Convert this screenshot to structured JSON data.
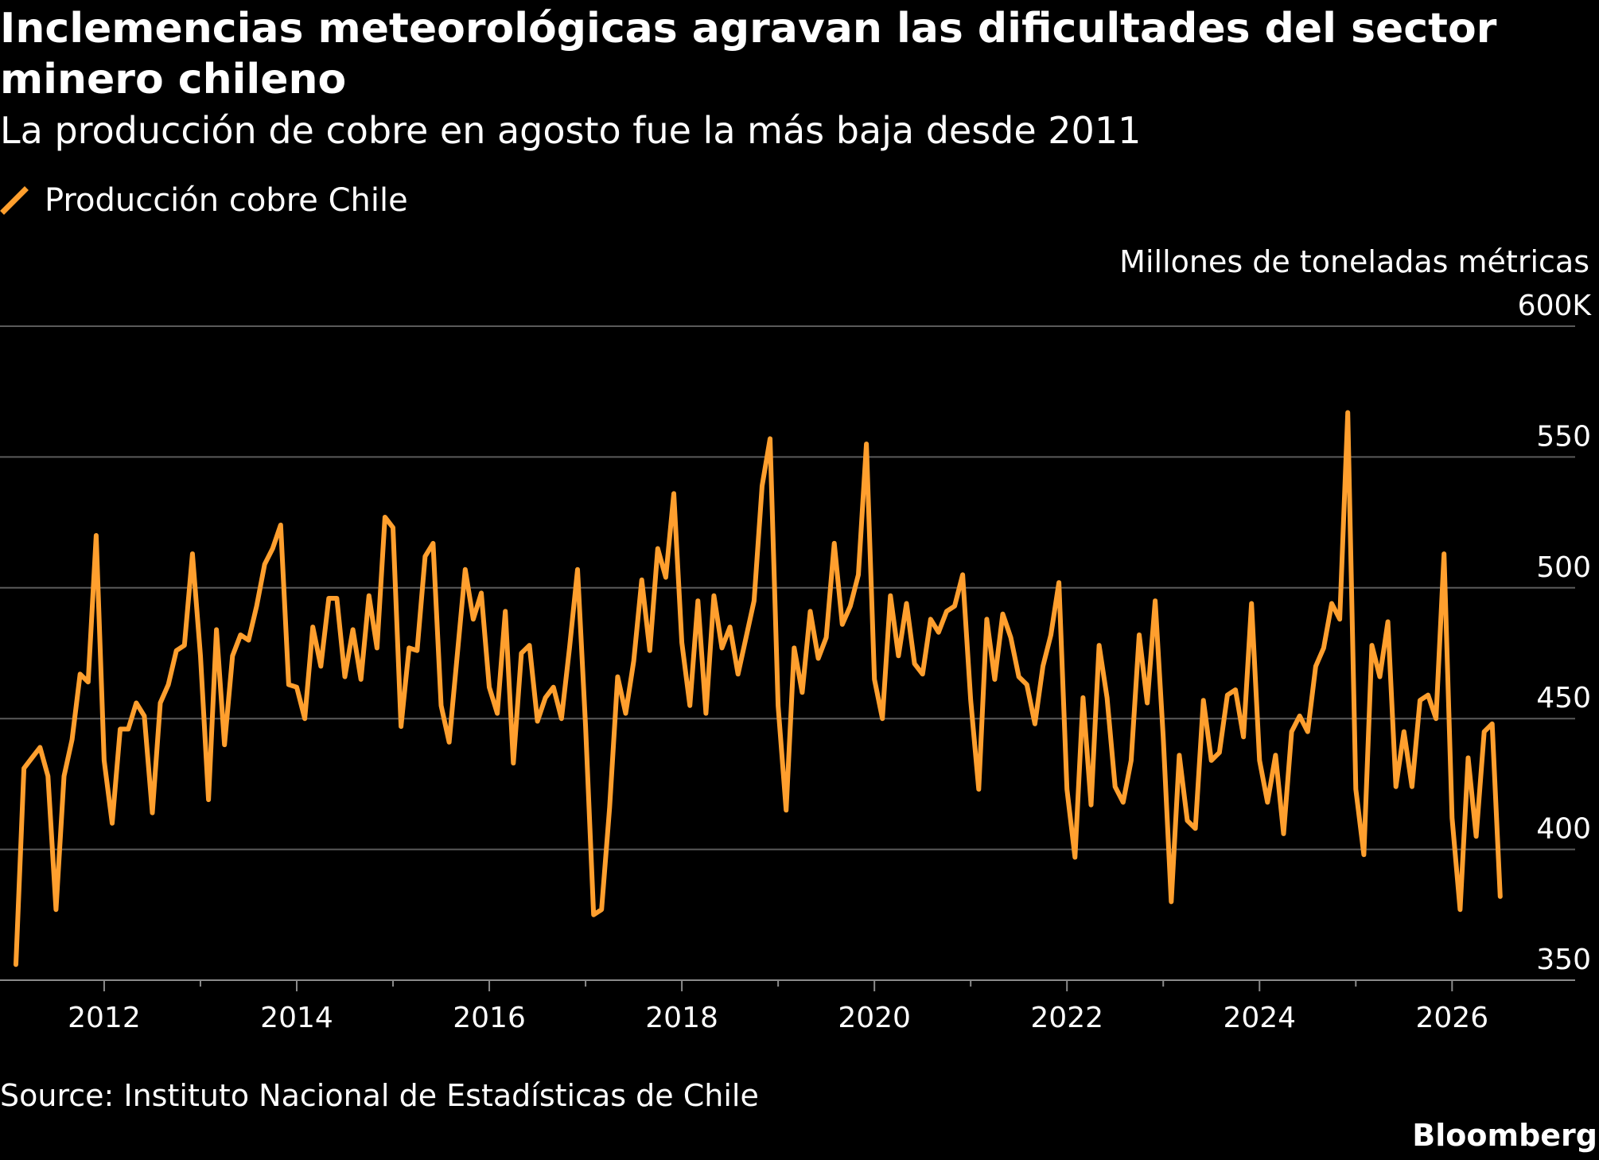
{
  "title": "Inclemencias meteorológicas agravan las dificultades del sector minero chileno",
  "subtitle": "La producción de cobre en agosto fue la más baja desde 2011",
  "legend": {
    "label": "Producción cobre Chile",
    "color": "#ff9f2e"
  },
  "unit_label": "Millones de toneladas métricas",
  "source": "Source: Instituto Nacional de Estadísticas de Chile",
  "brand": "Bloomberg",
  "colors": {
    "background": "#000000",
    "line": "#ff9f2e",
    "grid": "#5a5a5a",
    "text": "#ffffff"
  },
  "chart_data": {
    "type": "line",
    "title": "Inclemencias meteorológicas agravan las dificultades del sector minero chileno",
    "subtitle": "La producción de cobre en agosto fue la más baja desde 2011",
    "xlabel": "",
    "ylabel": "Millones de toneladas métricas",
    "ylim": [
      350,
      600
    ],
    "xlim": [
      "2011-01",
      "2026-12"
    ],
    "grid": true,
    "legend_position": "top-left",
    "y_ticks": [
      {
        "value": 600,
        "label": "600K"
      },
      {
        "value": 550,
        "label": "550"
      },
      {
        "value": 500,
        "label": "500"
      },
      {
        "value": 450,
        "label": "450"
      },
      {
        "value": 400,
        "label": "400"
      },
      {
        "value": 350,
        "label": "350"
      }
    ],
    "x_ticks": [
      {
        "value": "2012-01",
        "label": "2012"
      },
      {
        "value": "2014-01",
        "label": "2014"
      },
      {
        "value": "2016-01",
        "label": "2016"
      },
      {
        "value": "2018-01",
        "label": "2018"
      },
      {
        "value": "2020-01",
        "label": "2020"
      },
      {
        "value": "2022-01",
        "label": "2022"
      },
      {
        "value": "2024-01",
        "label": "2024"
      },
      {
        "value": "2026-01",
        "label": "2026"
      }
    ],
    "x_minor_ticks": [
      "2013-01",
      "2015-01",
      "2017-01",
      "2019-01",
      "2021-01",
      "2023-01",
      "2025-01"
    ],
    "series": [
      {
        "name": "Producción cobre Chile",
        "start": "2011-02",
        "frequency": "monthly",
        "values": [
          356,
          431,
          435,
          439,
          428,
          377,
          428,
          442,
          467,
          464,
          520,
          434,
          410,
          446,
          446,
          456,
          451,
          414,
          456,
          463,
          476,
          478,
          513,
          474,
          419,
          484,
          440,
          474,
          482,
          480,
          493,
          509,
          515,
          524,
          463,
          462,
          450,
          485,
          470,
          496,
          496,
          466,
          484,
          465,
          497,
          477,
          527,
          523,
          447,
          477,
          476,
          512,
          517,
          455,
          441,
          474,
          507,
          488,
          498,
          462,
          452,
          491,
          433,
          475,
          478,
          449,
          458,
          462,
          450,
          477,
          507,
          447,
          375,
          377,
          416,
          466,
          452,
          472,
          503,
          476,
          515,
          504,
          536,
          479,
          455,
          495,
          452,
          497,
          477,
          485,
          467,
          481,
          495,
          539,
          557,
          455,
          415,
          477,
          460,
          491,
          473,
          481,
          517,
          486,
          493,
          505,
          555,
          465,
          450,
          497,
          474,
          494,
          471,
          467,
          488,
          483,
          491,
          493,
          505,
          457,
          423,
          488,
          465,
          490,
          481,
          466,
          463,
          448,
          470,
          482,
          502,
          423,
          397,
          458,
          417,
          478,
          458,
          424,
          418,
          434,
          482,
          456,
          495,
          443,
          380,
          436,
          411,
          408,
          457,
          434,
          437,
          459,
          461,
          443,
          494,
          434,
          418,
          436,
          406,
          445,
          451,
          445,
          470,
          477,
          494,
          488,
          567,
          423,
          398,
          478,
          466,
          487,
          424,
          445,
          424,
          457,
          459,
          450,
          513,
          412,
          377,
          435,
          405,
          445,
          448,
          382
        ]
      }
    ]
  }
}
